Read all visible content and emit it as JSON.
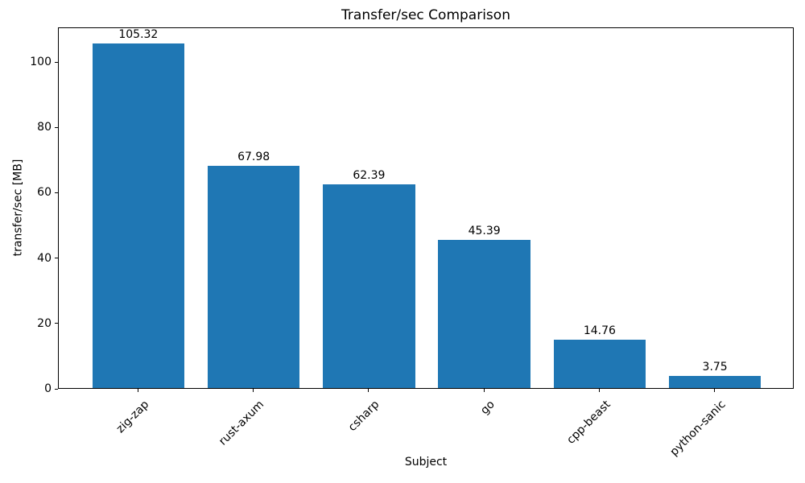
{
  "chart_data": {
    "type": "bar",
    "title": "Transfer/sec Comparison",
    "xlabel": "Subject",
    "ylabel": "transfer/sec [MB]",
    "categories": [
      "zig-zap",
      "rust-axum",
      "csharp",
      "go",
      "cpp-beast",
      "python-sanic"
    ],
    "values": [
      105.32,
      67.98,
      62.39,
      45.39,
      14.76,
      3.75
    ],
    "value_labels": [
      "105.32",
      "67.98",
      "62.39",
      "45.39",
      "14.76",
      "3.75"
    ],
    "yticks": [
      0,
      20,
      40,
      60,
      80,
      100
    ],
    "ylim": [
      0,
      110.6
    ],
    "bar_color": "#1f77b4",
    "grid": false,
    "x_tick_rotation_deg": 45,
    "legend_position": "none"
  }
}
